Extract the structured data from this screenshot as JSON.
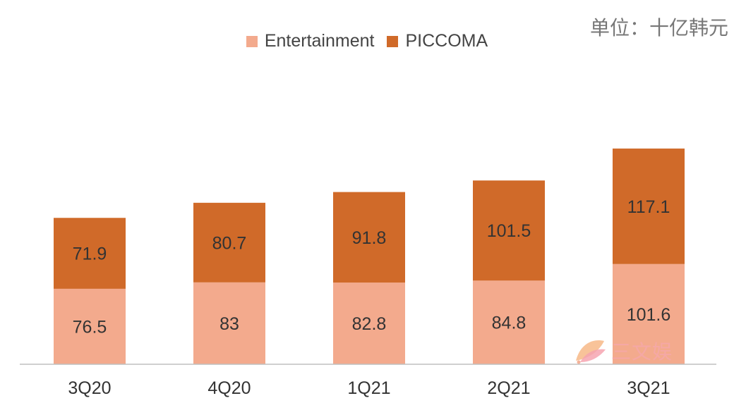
{
  "unit_label": "单位：十亿韩元",
  "watermark_text": "三文娱",
  "chart_data": {
    "type": "bar",
    "stacked": true,
    "categories": [
      "3Q20",
      "4Q20",
      "1Q21",
      "2Q21",
      "3Q21"
    ],
    "series": [
      {
        "name": "Entertainment",
        "values": [
          76.5,
          83,
          82.8,
          84.8,
          101.6
        ],
        "labels": [
          "76.5",
          "83",
          "82.8",
          "84.8",
          "101.6"
        ],
        "color": "#F3AA8D"
      },
      {
        "name": "PICCOMA",
        "values": [
          71.9,
          80.7,
          91.8,
          101.5,
          117.1
        ],
        "labels": [
          "71.9",
          "80.7",
          "91.8",
          "101.5",
          "117.1"
        ],
        "color": "#D06A29"
      }
    ],
    "ylim": [
      0,
      250
    ],
    "grid": false,
    "legend_position": "top-center",
    "xlabel": "",
    "ylabel": ""
  }
}
